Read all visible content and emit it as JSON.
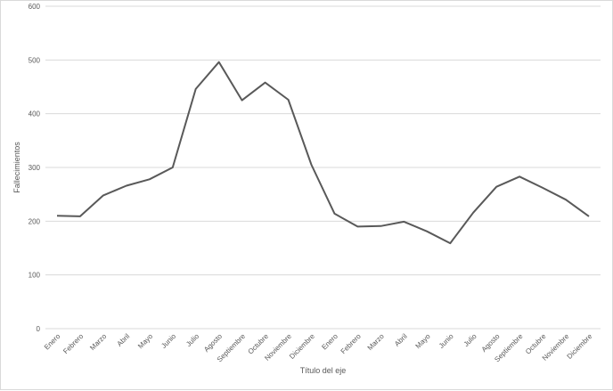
{
  "chart_data": {
    "type": "line",
    "title": "",
    "xlabel": "Título del eje",
    "ylabel": "Fallecimientos",
    "ylim": [
      0,
      600
    ],
    "yticks": [
      0,
      100,
      200,
      300,
      400,
      500,
      600
    ],
    "grid": true,
    "categories": [
      "Enero",
      "Febrero",
      "Marzo",
      "Abril",
      "Mayo",
      "Junio",
      "Julio",
      "Agosto",
      "Septiembre",
      "Octubre",
      "Noviembre",
      "Diciembre",
      "Enero",
      "Febrero",
      "Marzo",
      "Abril",
      "Mayo",
      "Junio",
      "Julio",
      "Agosto",
      "Septiembre",
      "Octubre",
      "Noviembre",
      "Diciembre"
    ],
    "series": [
      {
        "values": [
          210,
          209,
          248,
          266,
          278,
          300,
          446,
          496,
          425,
          458,
          426,
          305,
          214,
          190,
          191,
          199,
          181,
          159,
          216,
          264,
          283,
          262,
          240,
          209
        ]
      }
    ],
    "line_color": "#595959",
    "grid_color": "#d9d9d9"
  }
}
